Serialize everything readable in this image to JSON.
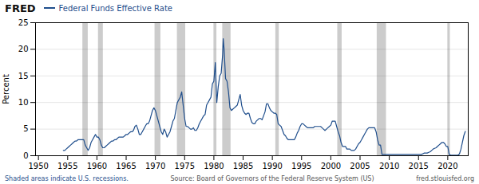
{
  "chart_data": {
    "type": "line",
    "title": "Federal Funds Effective Rate",
    "ylabel": "Percent",
    "annotations": [
      "FRED",
      "Shaded areas indicate U.S. recessions.",
      "Source: Board of Governors of the Federal Reserve System (US)",
      "fred.stlouisfed.org"
    ],
    "color": "#1f4e8c",
    "grid": true,
    "xlim": [
      1949.5,
      2023.5
    ],
    "xticks": [
      1950,
      1955,
      1960,
      1965,
      1970,
      1975,
      1980,
      1985,
      1990,
      1995,
      2000,
      2005,
      2010,
      2015,
      2020
    ],
    "ylim": [
      0,
      25
    ],
    "yticks": [
      0,
      5,
      10,
      15,
      20,
      25
    ],
    "recessions": {
      "color": "#cccccc",
      "ranges": [
        [
          1957.58,
          1958.5
        ],
        [
          1960.25,
          1961.08
        ],
        [
          1969.92,
          1970.92
        ],
        [
          1973.75,
          1975.17
        ],
        [
          1980.0,
          1980.5
        ],
        [
          1981.5,
          1982.92
        ],
        [
          1990.58,
          1991.17
        ],
        [
          2001.17,
          2001.92
        ],
        [
          2007.92,
          2009.5
        ],
        [
          2020.0,
          2020.42
        ]
      ]
    },
    "x": [
      1954.25,
      1954.5,
      1954.75,
      1955.0,
      1955.25,
      1955.5,
      1955.75,
      1956.0,
      1956.25,
      1956.5,
      1956.75,
      1957.0,
      1957.25,
      1957.5,
      1957.75,
      1958.0,
      1958.25,
      1958.5,
      1958.75,
      1959.0,
      1959.25,
      1959.5,
      1959.75,
      1960.0,
      1960.25,
      1960.5,
      1960.75,
      1961.0,
      1961.25,
      1961.5,
      1961.75,
      1962.0,
      1962.25,
      1962.5,
      1962.75,
      1963.0,
      1963.25,
      1963.5,
      1963.75,
      1964.0,
      1964.25,
      1964.5,
      1964.75,
      1965.0,
      1965.25,
      1965.5,
      1965.75,
      1966.0,
      1966.25,
      1966.5,
      1966.75,
      1967.0,
      1967.25,
      1967.5,
      1967.75,
      1968.0,
      1968.25,
      1968.5,
      1968.75,
      1969.0,
      1969.25,
      1969.5,
      1969.75,
      1970.0,
      1970.25,
      1970.5,
      1970.75,
      1971.0,
      1971.25,
      1971.5,
      1971.75,
      1972.0,
      1972.25,
      1972.5,
      1972.75,
      1973.0,
      1973.25,
      1973.5,
      1973.75,
      1974.0,
      1974.25,
      1974.5,
      1974.75,
      1975.0,
      1975.25,
      1975.5,
      1975.75,
      1976.0,
      1976.25,
      1976.5,
      1976.75,
      1977.0,
      1977.25,
      1977.5,
      1977.75,
      1978.0,
      1978.25,
      1978.5,
      1978.75,
      1979.0,
      1979.25,
      1979.5,
      1979.75,
      1980.0,
      1980.25,
      1980.5,
      1980.75,
      1981.0,
      1981.25,
      1981.5,
      1981.6,
      1981.75,
      1982.0,
      1982.25,
      1982.5,
      1982.75,
      1983.0,
      1983.25,
      1983.5,
      1983.75,
      1984.0,
      1984.25,
      1984.5,
      1984.75,
      1985.0,
      1985.25,
      1985.5,
      1985.75,
      1986.0,
      1986.25,
      1986.5,
      1986.75,
      1987.0,
      1987.25,
      1987.5,
      1987.75,
      1988.0,
      1988.25,
      1988.5,
      1988.75,
      1989.0,
      1989.25,
      1989.5,
      1989.75,
      1990.0,
      1990.25,
      1990.5,
      1990.75,
      1991.0,
      1991.25,
      1991.5,
      1991.75,
      1992.0,
      1992.25,
      1992.5,
      1992.75,
      1993.0,
      1993.25,
      1993.5,
      1993.75,
      1994.0,
      1994.25,
      1994.5,
      1994.75,
      1995.0,
      1995.25,
      1995.5,
      1995.75,
      1996.0,
      1996.25,
      1996.5,
      1996.75,
      1997.0,
      1997.25,
      1997.5,
      1997.75,
      1998.0,
      1998.25,
      1998.5,
      1998.75,
      1999.0,
      1999.25,
      1999.5,
      1999.75,
      2000.0,
      2000.25,
      2000.5,
      2000.75,
      2001.0,
      2001.25,
      2001.5,
      2001.75,
      2002.0,
      2002.25,
      2002.5,
      2002.75,
      2003.0,
      2003.25,
      2003.5,
      2003.75,
      2004.0,
      2004.25,
      2004.5,
      2004.75,
      2005.0,
      2005.25,
      2005.5,
      2005.75,
      2006.0,
      2006.25,
      2006.5,
      2006.75,
      2007.0,
      2007.25,
      2007.5,
      2007.75,
      2008.0,
      2008.25,
      2008.5,
      2008.75,
      2009.0,
      2009.25,
      2009.5,
      2009.75,
      2010.0,
      2010.25,
      2010.5,
      2010.75,
      2011.0,
      2011.25,
      2011.5,
      2011.75,
      2012.0,
      2012.25,
      2012.5,
      2012.75,
      2013.0,
      2013.25,
      2013.5,
      2013.75,
      2014.0,
      2014.25,
      2014.5,
      2014.75,
      2015.0,
      2015.25,
      2015.5,
      2015.75,
      2016.0,
      2016.25,
      2016.5,
      2016.75,
      2017.0,
      2017.25,
      2017.5,
      2017.75,
      2018.0,
      2018.25,
      2018.5,
      2018.75,
      2019.0,
      2019.25,
      2019.5,
      2019.75,
      2020.0,
      2020.25,
      2020.5,
      2020.75,
      2021.0,
      2021.25,
      2021.5,
      2021.75,
      2022.0,
      2022.25,
      2022.5,
      2022.75,
      2023.0
    ],
    "values": [
      1.0,
      1.0,
      1.25,
      1.5,
      1.75,
      2.0,
      2.25,
      2.5,
      2.75,
      2.75,
      3.0,
      3.0,
      3.0,
      3.0,
      3.0,
      2.0,
      1.5,
      1.0,
      1.5,
      2.5,
      3.0,
      3.5,
      4.0,
      3.5,
      3.5,
      3.0,
      2.0,
      1.5,
      1.5,
      1.75,
      2.0,
      2.25,
      2.5,
      2.75,
      2.75,
      3.0,
      3.0,
      3.25,
      3.5,
      3.5,
      3.5,
      3.5,
      3.75,
      4.0,
      4.0,
      4.25,
      4.5,
      4.5,
      4.75,
      5.5,
      5.75,
      5.0,
      4.0,
      4.0,
      4.5,
      5.0,
      5.5,
      6.0,
      6.0,
      6.5,
      7.5,
      8.5,
      9.0,
      8.5,
      7.5,
      6.5,
      5.5,
      4.5,
      4.0,
      5.0,
      4.5,
      3.5,
      4.0,
      4.5,
      5.5,
      6.5,
      7.0,
      8.5,
      10.0,
      10.5,
      11.0,
      12.0,
      9.5,
      7.0,
      5.5,
      5.5,
      5.25,
      5.0,
      5.0,
      5.25,
      4.75,
      4.75,
      5.25,
      6.0,
      6.5,
      7.0,
      7.5,
      7.75,
      9.5,
      10.0,
      10.5,
      11.0,
      13.5,
      14.0,
      17.5,
      10.0,
      13.0,
      15.0,
      15.5,
      19.0,
      22.0,
      20.0,
      14.5,
      14.0,
      12.0,
      9.0,
      8.5,
      8.75,
      9.0,
      9.25,
      9.5,
      10.5,
      11.5,
      9.5,
      8.5,
      8.0,
      7.75,
      8.0,
      8.0,
      7.0,
      6.25,
      6.0,
      6.0,
      6.5,
      6.75,
      7.0,
      7.0,
      6.75,
      7.5,
      8.25,
      9.75,
      9.75,
      9.0,
      8.5,
      8.25,
      8.0,
      8.0,
      7.75,
      6.0,
      5.75,
      5.5,
      4.75,
      4.0,
      3.75,
      3.25,
      3.0,
      3.0,
      3.0,
      3.0,
      3.0,
      3.5,
      4.25,
      4.75,
      5.5,
      6.0,
      6.0,
      5.75,
      5.5,
      5.25,
      5.25,
      5.25,
      5.25,
      5.25,
      5.5,
      5.5,
      5.5,
      5.5,
      5.5,
      5.25,
      5.0,
      4.75,
      5.0,
      5.25,
      5.5,
      5.75,
      6.5,
      6.5,
      6.5,
      5.5,
      4.5,
      3.75,
      2.5,
      1.75,
      1.75,
      1.75,
      1.25,
      1.25,
      1.25,
      1.0,
      1.0,
      1.0,
      1.25,
      1.75,
      2.25,
      2.5,
      3.0,
      3.5,
      4.0,
      4.5,
      5.0,
      5.25,
      5.25,
      5.25,
      5.25,
      5.25,
      4.5,
      3.0,
      2.0,
      2.0,
      0.25,
      0.25,
      0.25,
      0.25,
      0.25,
      0.25,
      0.25,
      0.25,
      0.25,
      0.25,
      0.25,
      0.25,
      0.25,
      0.25,
      0.25,
      0.25,
      0.25,
      0.25,
      0.25,
      0.25,
      0.25,
      0.25,
      0.25,
      0.25,
      0.25,
      0.25,
      0.25,
      0.25,
      0.375,
      0.5,
      0.5,
      0.5,
      0.625,
      0.75,
      1.0,
      1.25,
      1.375,
      1.5,
      1.75,
      2.0,
      2.25,
      2.5,
      2.5,
      2.25,
      1.75,
      1.75,
      0.25,
      0.1,
      0.1,
      0.1,
      0.1,
      0.1,
      0.1,
      0.33,
      1.21,
      2.5,
      3.78,
      4.57
    ]
  }
}
